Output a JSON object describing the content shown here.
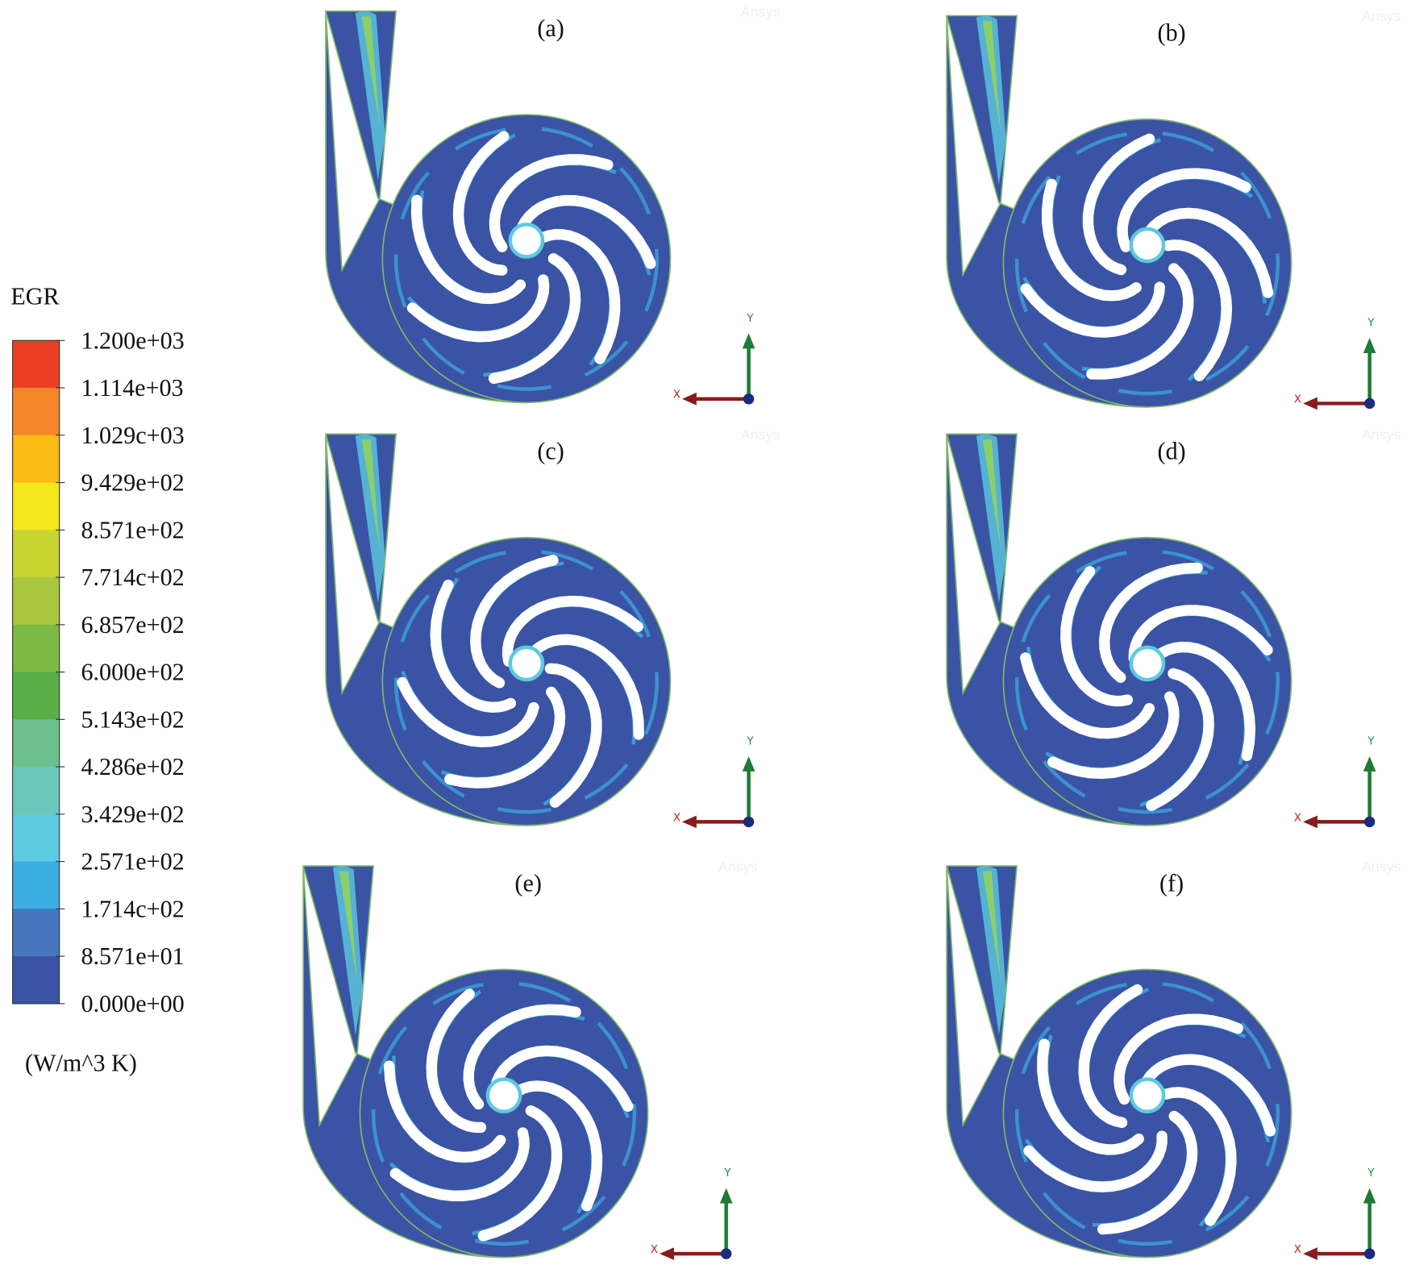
{
  "legend": {
    "title": "EGR",
    "labels": [
      "1.200e+03",
      "1.114e+03",
      "1.029c+03",
      "9.429e+02",
      "8.571e+02",
      "7.714c+02",
      "6.857e+02",
      "6.000e+02",
      "5.143e+02",
      "4.286e+02",
      "3.429e+02",
      "2.571e+02",
      "1.714c+02",
      "8.571e+01",
      "0.000e+00"
    ],
    "colors": [
      "#ec3f26",
      "#f5862a",
      "#fbbb15",
      "#f4e81d",
      "#c8d431",
      "#a9c73e",
      "#7dba43",
      "#5aae48",
      "#6cc08e",
      "#6cc7bb",
      "#5ccae0",
      "#3caee3",
      "#4677be",
      "#3a53a4"
    ],
    "unit": "(W/m^3 K)"
  },
  "panels": [
    {
      "label": "(a)",
      "watermark": "Ansys",
      "x_axis": "X",
      "y_axis": "Y"
    },
    {
      "label": "(b)",
      "watermark": "Ansys",
      "x_axis": "X",
      "y_axis": "Y"
    },
    {
      "label": "(c)",
      "watermark": "Ansys",
      "x_axis": "X",
      "y_axis": "Y"
    },
    {
      "label": "(d)",
      "watermark": "Ansys",
      "x_axis": "X",
      "y_axis": "Y"
    },
    {
      "label": "(e)",
      "watermark": "Ansys",
      "x_axis": "X",
      "y_axis": "Y"
    },
    {
      "label": "(f)",
      "watermark": "Ansys",
      "x_axis": "X",
      "y_axis": "Y"
    }
  ]
}
